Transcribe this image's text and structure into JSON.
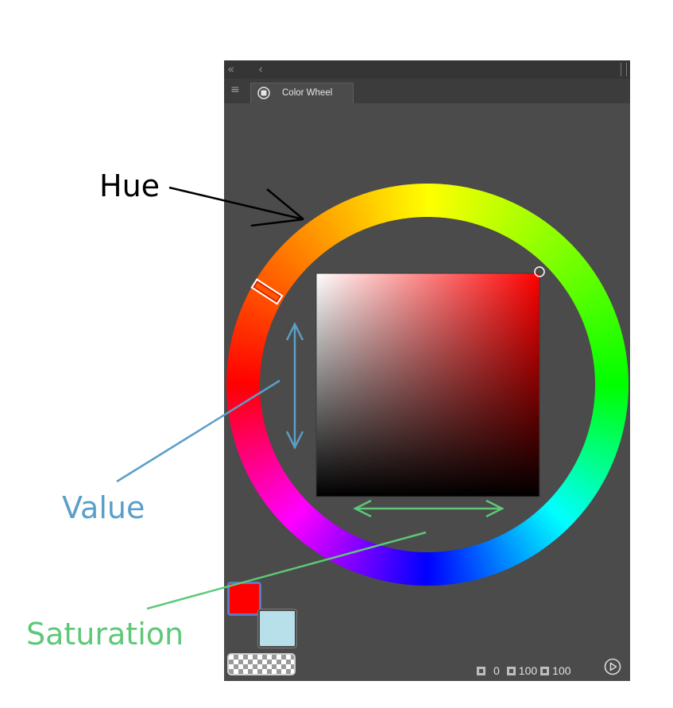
{
  "panel": {
    "collapse_all_icon": "double-chevron-left-icon",
    "collapse_icon": "chevron-left-icon",
    "menu_icon": "hamburger-menu-icon",
    "tab": {
      "label": "Color Wheel",
      "icon": "color-wheel-icon"
    }
  },
  "colors": {
    "foreground": "#ff0000",
    "background": "#b7e0ea",
    "current_hue": "#ff0000"
  },
  "readout": {
    "h": "0",
    "s": "100",
    "v": "100"
  },
  "annotations": {
    "hue": "Hue",
    "value": "Value",
    "saturation": "Saturation"
  },
  "annotation_colors": {
    "hue": "#000000",
    "value": "#5a9fc8",
    "saturation": "#5ec878"
  }
}
